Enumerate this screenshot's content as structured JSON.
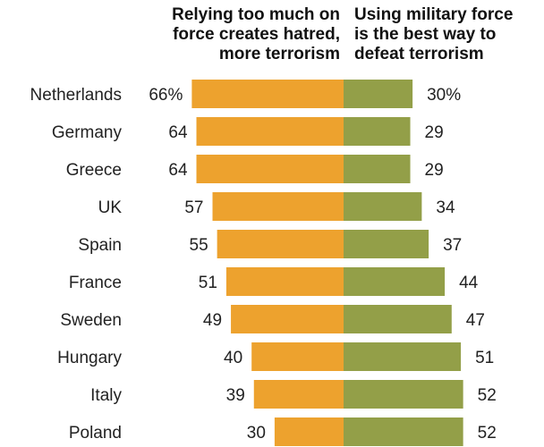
{
  "headers": {
    "left": "Relying too much on\nforce creates hatred,\nmore terrorism",
    "right": "Using military force\nis the best way to\ndefeat terrorism"
  },
  "colors": {
    "left": "#EDA22E",
    "right": "#939F48"
  },
  "chart_data": {
    "type": "bar",
    "orientation": "horizontal-diverging",
    "categories": [
      "Netherlands",
      "Germany",
      "Greece",
      "UK",
      "Spain",
      "France",
      "Sweden",
      "Hungary",
      "Italy",
      "Poland"
    ],
    "series": [
      {
        "name": "Relying too much on force creates hatred, more terrorism",
        "values": [
          66,
          64,
          64,
          57,
          55,
          51,
          49,
          40,
          39,
          30
        ],
        "labels": [
          "66%",
          "64",
          "64",
          "57",
          "55",
          "51",
          "49",
          "40",
          "39",
          "30"
        ]
      },
      {
        "name": "Using military force is the best way to defeat terrorism",
        "values": [
          30,
          29,
          29,
          34,
          37,
          44,
          47,
          51,
          52,
          52
        ],
        "labels": [
          "30%",
          "29",
          "29",
          "34",
          "37",
          "44",
          "47",
          "51",
          "52",
          "52"
        ]
      }
    ]
  }
}
